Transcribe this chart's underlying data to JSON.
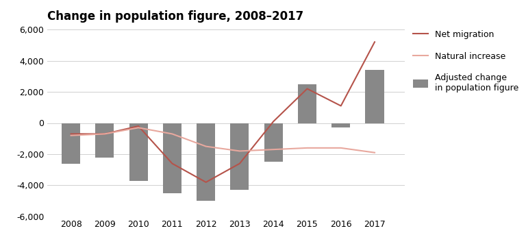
{
  "title": "Change in population figure, 2008–2017",
  "years": [
    2008,
    2009,
    2010,
    2011,
    2012,
    2013,
    2014,
    2015,
    2016,
    2017
  ],
  "net_migration_x": [
    2008,
    2009,
    2010,
    2011,
    2012,
    2013,
    2014,
    2015,
    2016,
    2017
  ],
  "net_migration_y": [
    -700,
    -700,
    -200,
    -2600,
    -3800,
    -2600,
    100,
    2200,
    1100,
    5200
  ],
  "natural_increase_x": [
    2008,
    2009,
    2010,
    2011,
    2012,
    2013,
    2014,
    2015,
    2016,
    2017
  ],
  "natural_increase_y": [
    -800,
    -700,
    -300,
    -700,
    -1500,
    -1800,
    -1700,
    -1600,
    -1600,
    -1900
  ],
  "adjusted_change": [
    -2600,
    -2200,
    -3700,
    -4500,
    -5000,
    -4300,
    -2500,
    2500,
    -300,
    3400
  ],
  "ylim": [
    -6000,
    6000
  ],
  "yticks": [
    -6000,
    -4000,
    -2000,
    0,
    2000,
    4000,
    6000
  ],
  "bar_color": "#888888",
  "bar_alpha": 1.0,
  "net_migration_color": "#b5534a",
  "natural_increase_color": "#e8a89e",
  "background_color": "#ffffff",
  "grid_color": "#d0d0d0",
  "title_fontsize": 12,
  "axis_fontsize": 9,
  "legend_labels": [
    "Net migration",
    "Natural increase",
    "Adjusted change\nin population figure"
  ]
}
